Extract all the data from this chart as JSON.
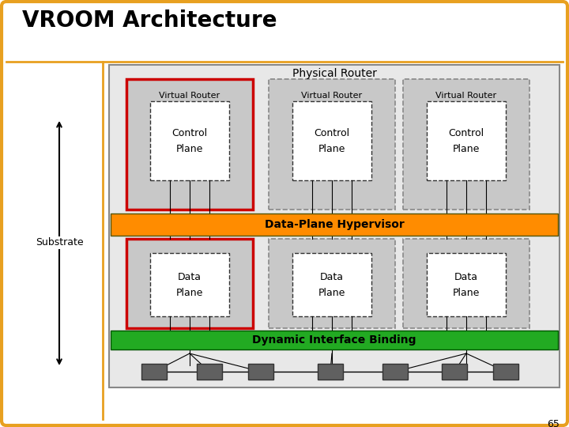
{
  "title": "VROOM Architecture",
  "title_fontsize": 20,
  "title_fontweight": "bold",
  "bg_color": "#FFFFFF",
  "outer_border_color": "#E8A020",
  "outer_border_lw": 3,
  "physical_router_label": "Physical Router",
  "substrate_label": "Substrate",
  "hypervisor_label": "Data-Plane Hypervisor",
  "hypervisor_color": "#FF8C00",
  "binding_label": "Dynamic Interface Binding",
  "binding_color": "#22AA22",
  "vr_label": "Virtual Router",
  "cp_label": [
    "Control",
    "Plane"
  ],
  "dp_label": [
    "Data",
    "Plane"
  ],
  "gray_fill": "#C8C8C8",
  "white_fill": "#FFFFFF",
  "dark_gray": "#606060",
  "slide_number": "65",
  "first_vr_border_color": "#CC0000",
  "other_vr_border_color": "#888888"
}
